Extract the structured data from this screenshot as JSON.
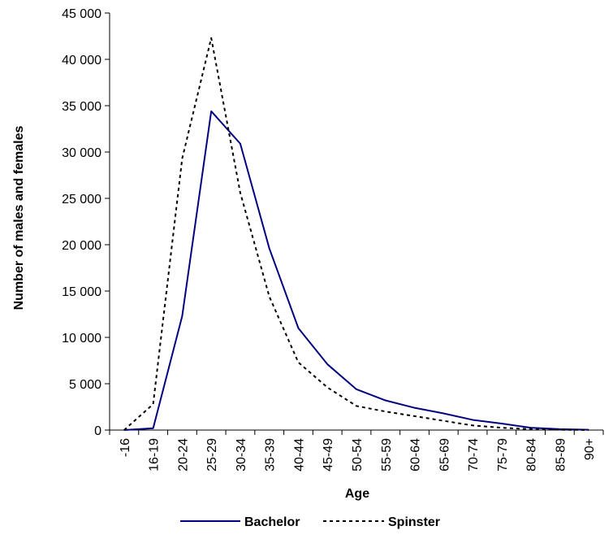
{
  "chart_data": {
    "type": "line",
    "title": "",
    "xlabel": "Age",
    "ylabel": "Number of males and females",
    "categories": [
      "-16",
      "16-19",
      "20-24",
      "25-29",
      "30-34",
      "35-39",
      "40-44",
      "45-49",
      "50-54",
      "55-59",
      "60-64",
      "65-69",
      "70-74",
      "75-79",
      "80-84",
      "85-89",
      "90+"
    ],
    "ylim": [
      0,
      45000
    ],
    "yticks": [
      0,
      5000,
      10000,
      15000,
      20000,
      25000,
      30000,
      35000,
      40000,
      45000
    ],
    "ytick_labels": [
      "0",
      "5 000",
      "10 000",
      "15 000",
      "20 000",
      "25 000",
      "30 000",
      "35 000",
      "40 000",
      "45 000"
    ],
    "grid": false,
    "legend_position": "bottom",
    "series": [
      {
        "name": "Bachelor",
        "color": "#000080",
        "style": "solid",
        "values": [
          0,
          200,
          12300,
          34400,
          30900,
          19600,
          11000,
          7100,
          4400,
          3200,
          2400,
          1800,
          1100,
          700,
          250,
          100,
          30
        ]
      },
      {
        "name": "Spinster",
        "color": "#000000",
        "style": "dashed",
        "values": [
          0,
          2800,
          29300,
          42300,
          25600,
          14400,
          7300,
          4600,
          2600,
          2000,
          1500,
          1000,
          500,
          250,
          100,
          30,
          10
        ]
      }
    ]
  }
}
